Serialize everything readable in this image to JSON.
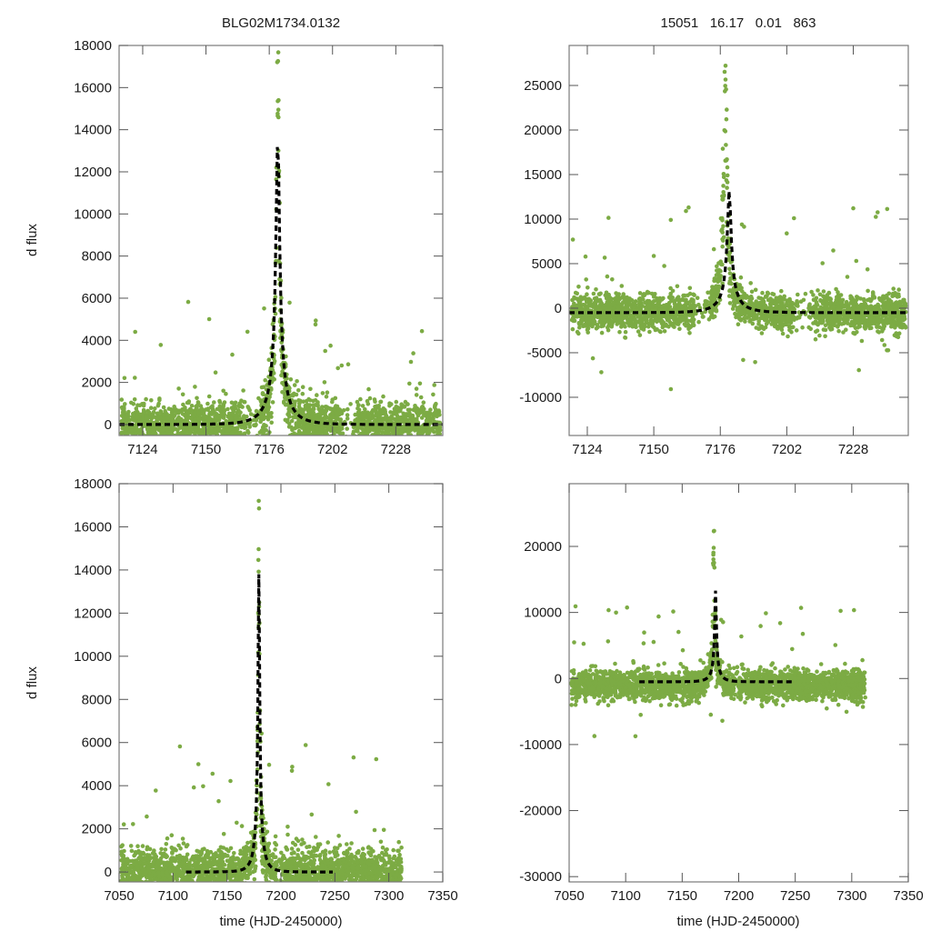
{
  "chart_data": [
    {
      "id": "top-left",
      "type": "scatter",
      "title": "BLG02M1734.0132",
      "xlabel": "",
      "ylabel": "d flux",
      "xlim": [
        7114.3,
        7247.3
      ],
      "ylim": [
        -520,
        18000
      ],
      "xticks": [
        7124,
        7150,
        7176,
        7202,
        7228
      ],
      "yticks": [
        0,
        2000,
        4000,
        6000,
        8000,
        10000,
        12000,
        14000,
        16000,
        18000
      ],
      "series": [
        {
          "name": "observations",
          "kind": "points",
          "color": "#7cab44",
          "baseline": 0,
          "peak_amplitude": 17500,
          "peak_time": 7178.5,
          "scatter": 600
        },
        {
          "name": "model",
          "kind": "dashed-line",
          "color": "#000000",
          "t0": 7179.5,
          "peak": 13800,
          "tE": 9.5
        }
      ]
    },
    {
      "id": "top-right",
      "type": "scatter",
      "title": "15051   16.17   0.01   863",
      "xlabel": "",
      "ylabel": "",
      "xlim": [
        7116.9,
        7249.5
      ],
      "ylim": [
        -14290,
        29490
      ],
      "xticks": [
        7124,
        7150,
        7176,
        7202,
        7228
      ],
      "yticks": [
        -10000,
        -5000,
        0,
        5000,
        10000,
        15000,
        20000,
        25000
      ],
      "series": [
        {
          "name": "observations",
          "kind": "points",
          "color": "#7cab44",
          "baseline": -500,
          "peak_amplitude": 26000,
          "peak_time": 7177,
          "scatter": 1000
        },
        {
          "name": "model",
          "kind": "dashed-line",
          "color": "#000000",
          "t0": 7179.5,
          "peak": 13800,
          "tE": 9.5,
          "baseline": -500
        }
      ]
    },
    {
      "id": "bottom-left",
      "type": "scatter",
      "title": "",
      "xlabel": "time (HJD-2450000)",
      "ylabel": "d flux",
      "xlim": [
        7050,
        7350
      ],
      "ylim": [
        -460,
        18000
      ],
      "xticks": [
        7050,
        7100,
        7150,
        7200,
        7250,
        7300,
        7350
      ],
      "yticks": [
        0,
        2000,
        4000,
        6000,
        8000,
        10000,
        12000,
        14000,
        16000,
        18000
      ],
      "series": [
        {
          "name": "observations",
          "kind": "points",
          "color": "#7cab44",
          "baseline": 0,
          "peak_amplitude": 17500,
          "peak_time": 7178.5,
          "scatter": 600,
          "time_range": [
            7052,
            7312
          ]
        },
        {
          "name": "model",
          "kind": "dashed-line",
          "color": "#000000",
          "t0": 7179.5,
          "peak": 13800,
          "tE": 9.5,
          "time_range": [
            7112,
            7248
          ]
        }
      ]
    },
    {
      "id": "bottom-right",
      "type": "scatter",
      "title": "",
      "xlabel": "time (HJD-2450000)",
      "ylabel": "",
      "xlim": [
        7050,
        7350
      ],
      "ylim": [
        -30800,
        29500
      ],
      "xticks": [
        7050,
        7100,
        7150,
        7200,
        7250,
        7300,
        7350
      ],
      "yticks": [
        -30000,
        -20000,
        -10000,
        0,
        10000,
        20000
      ],
      "series": [
        {
          "name": "observations",
          "kind": "points",
          "color": "#7cab44",
          "baseline": -1000,
          "peak_amplitude": 26000,
          "peak_time": 7177,
          "scatter": 1000,
          "time_range": [
            7052,
            7312
          ]
        },
        {
          "name": "model",
          "kind": "dashed-line",
          "color": "#000000",
          "t0": 7179.5,
          "peak": 13800,
          "tE": 9.5,
          "baseline": -500,
          "time_range": [
            7112,
            7248
          ]
        }
      ]
    }
  ]
}
